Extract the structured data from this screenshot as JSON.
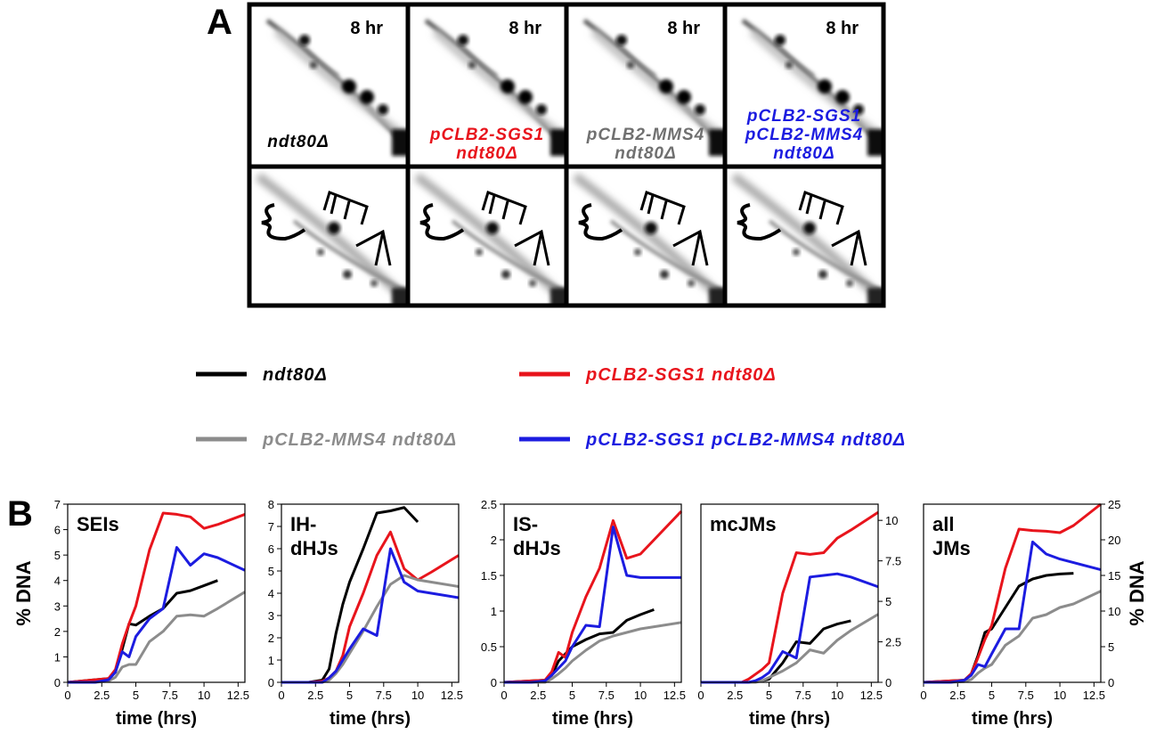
{
  "figure": {
    "panel_a_label": "A",
    "panel_b_label": "B",
    "gels": [
      {
        "time": "8 hr",
        "genotype": [
          "ndt80Δ"
        ],
        "color": "#000000"
      },
      {
        "time": "8 hr",
        "genotype": [
          "pCLB2-SGS1",
          "ndt80Δ"
        ],
        "color": "#e8141c"
      },
      {
        "time": "8 hr",
        "genotype": [
          "pCLB2-MMS4",
          "ndt80Δ"
        ],
        "color": "#707070"
      },
      {
        "time": "8 hr",
        "genotype": [
          "pCLB2-SGS1",
          "pCLB2-MMS4",
          "ndt80Δ"
        ],
        "color": "#1c1ce0"
      }
    ]
  },
  "chart_data": [
    {
      "type": "line",
      "title": [
        "SEIs"
      ],
      "y_label": "% DNA",
      "x_label": "time (hrs)",
      "x": [
        0,
        2,
        3,
        3.5,
        4,
        4.5,
        5,
        6,
        7,
        8,
        9,
        10,
        11,
        13
      ],
      "xlim": [
        0,
        13
      ],
      "xticks": [
        0,
        2.5,
        5,
        7.5,
        10,
        12.5
      ],
      "ylim": [
        0,
        7
      ],
      "yticks": [
        0,
        1,
        2,
        3,
        4,
        5,
        6,
        7
      ],
      "series": [
        {
          "name": "ndt80Δ",
          "color": "#000000",
          "values": [
            0,
            0.1,
            0.15,
            0.4,
            1.3,
            2.3,
            2.25,
            2.6,
            2.9,
            3.5,
            3.6,
            3.8,
            4.0,
            null
          ]
        },
        {
          "name": "pCLB2-SGS1 ndt80Δ",
          "color": "#e8141c",
          "values": [
            0,
            0.1,
            0.15,
            0.5,
            1.5,
            2.3,
            3.0,
            5.2,
            6.65,
            6.6,
            6.5,
            6.05,
            6.2,
            6.6
          ]
        },
        {
          "name": "pCLB2-MMS4 ndt80Δ",
          "color": "#8c8c8c",
          "values": [
            0,
            0,
            0.05,
            0.2,
            0.6,
            0.7,
            0.7,
            1.6,
            2.0,
            2.6,
            2.65,
            2.6,
            2.9,
            3.55
          ]
        },
        {
          "name": "pCLB2-SGS1 pCLB2-MMS4 ndt80Δ",
          "color": "#1c1ce0",
          "values": [
            0,
            0,
            0.1,
            0.4,
            1.2,
            1.0,
            1.8,
            2.5,
            2.9,
            5.3,
            4.6,
            5.05,
            4.9,
            4.4
          ]
        }
      ]
    },
    {
      "type": "line",
      "title": [
        "IH-",
        "dHJs"
      ],
      "x_label": "time (hrs)",
      "x": [
        0,
        2,
        3,
        3.5,
        4,
        4.5,
        5,
        6,
        7,
        8,
        9,
        10,
        11,
        13
      ],
      "xlim": [
        0,
        13
      ],
      "xticks": [
        0,
        2.5,
        5,
        7.5,
        10,
        12.5
      ],
      "ylim": [
        0,
        8
      ],
      "yticks": [
        0,
        1,
        2,
        3,
        4,
        5,
        6,
        7,
        8
      ],
      "series": [
        {
          "color": "#000000",
          "values": [
            0,
            0,
            0.1,
            0.6,
            2.2,
            3.5,
            4.5,
            6.0,
            7.6,
            7.7,
            7.85,
            7.2,
            null,
            null
          ]
        },
        {
          "color": "#e8141c",
          "values": [
            0,
            0,
            0.05,
            0.2,
            0.5,
            1.2,
            2.5,
            4.0,
            5.7,
            6.75,
            5.1,
            4.6,
            4.95,
            5.7
          ]
        },
        {
          "color": "#8c8c8c",
          "values": [
            0,
            0,
            0,
            0.1,
            0.4,
            0.8,
            1.3,
            2.3,
            3.4,
            4.4,
            4.8,
            4.6,
            4.5,
            4.3
          ]
        },
        {
          "color": "#1c1ce0",
          "values": [
            0,
            0,
            0,
            0.2,
            0.5,
            1.0,
            1.5,
            2.4,
            2.1,
            6.0,
            4.5,
            4.1,
            4.0,
            3.8
          ]
        }
      ]
    },
    {
      "type": "line",
      "title": [
        "IS-",
        "dHJs"
      ],
      "x_label": "time (hrs)",
      "x": [
        0,
        2,
        3,
        3.5,
        4,
        4.5,
        5,
        6,
        7,
        8,
        9,
        10,
        11,
        13
      ],
      "xlim": [
        0,
        13
      ],
      "xticks": [
        0,
        2.5,
        5,
        7.5,
        10,
        12.5
      ],
      "ylim": [
        0,
        2.5
      ],
      "yticks": [
        0,
        0.5,
        1,
        1.5,
        2,
        2.5
      ],
      "series": [
        {
          "color": "#000000",
          "values": [
            0,
            0.02,
            0.03,
            0.1,
            0.3,
            0.4,
            0.5,
            0.6,
            0.68,
            0.7,
            0.87,
            0.95,
            1.02,
            null
          ]
        },
        {
          "color": "#e8141c",
          "values": [
            0,
            0.02,
            0.03,
            0.15,
            0.42,
            0.35,
            0.7,
            1.2,
            1.6,
            2.27,
            1.74,
            1.8,
            2.0,
            2.4
          ]
        },
        {
          "color": "#8c8c8c",
          "values": [
            0,
            0,
            0,
            0.05,
            0.12,
            0.2,
            0.3,
            0.45,
            0.58,
            0.65,
            0.7,
            0.75,
            0.78,
            0.84
          ]
        },
        {
          "color": "#1c1ce0",
          "values": [
            0,
            0,
            0.02,
            0.1,
            0.2,
            0.3,
            0.5,
            0.8,
            0.78,
            2.18,
            1.5,
            1.47,
            1.47,
            1.47
          ]
        }
      ]
    },
    {
      "type": "line",
      "title": [
        "mcJMs"
      ],
      "x_label": "time (hrs)",
      "x": [
        0,
        2,
        3,
        3.5,
        4,
        4.5,
        5,
        6,
        7,
        8,
        9,
        10,
        11,
        13
      ],
      "xlim": [
        0,
        13
      ],
      "xticks": [
        0,
        2.5,
        5,
        7.5,
        10,
        12.5
      ],
      "y2lim": [
        0,
        11
      ],
      "y2ticks": [
        0,
        2.5,
        5,
        7.5,
        10
      ],
      "series": [
        {
          "color": "#000000",
          "axis": "y2",
          "values": [
            0,
            0,
            0,
            0,
            0.05,
            0.1,
            0.2,
            1.2,
            2.5,
            2.4,
            3.3,
            3.6,
            3.8,
            null
          ]
        },
        {
          "color": "#e8141c",
          "axis": "y2",
          "values": [
            0,
            0,
            0,
            0.2,
            0.5,
            0.8,
            1.2,
            5.5,
            8.0,
            7.9,
            8.0,
            8.9,
            9.4,
            10.5
          ]
        },
        {
          "color": "#8c8c8c",
          "axis": "y2",
          "values": [
            0,
            0,
            0,
            0,
            0,
            0.1,
            0.3,
            0.7,
            1.2,
            2.0,
            1.8,
            2.6,
            3.2,
            4.2
          ]
        },
        {
          "color": "#1c1ce0",
          "axis": "y2",
          "values": [
            0,
            0,
            0,
            0,
            0.1,
            0.3,
            0.6,
            1.9,
            1.5,
            6.5,
            6.6,
            6.7,
            6.5,
            5.9
          ]
        }
      ]
    },
    {
      "type": "line",
      "title": [
        "all",
        "JMs"
      ],
      "y_label": "% DNA",
      "x_label": "time (hrs)",
      "x": [
        0,
        2,
        3,
        3.5,
        4,
        4.5,
        5,
        6,
        7,
        8,
        9,
        10,
        11,
        13
      ],
      "xlim": [
        0,
        13
      ],
      "xticks": [
        0,
        2.5,
        5,
        7.5,
        10,
        12.5
      ],
      "y2lim": [
        0,
        25
      ],
      "y2ticks": [
        0,
        5,
        10,
        15,
        20,
        25
      ],
      "series": [
        {
          "color": "#000000",
          "axis": "y2",
          "values": [
            0,
            0.2,
            0.3,
            1.2,
            3.8,
            7.0,
            7.5,
            10.5,
            13.5,
            14.5,
            15.0,
            15.2,
            15.3,
            null
          ]
        },
        {
          "color": "#e8141c",
          "axis": "y2",
          "values": [
            0,
            0.2,
            0.3,
            1.2,
            3.5,
            6.0,
            8.0,
            16.0,
            21.5,
            21.3,
            21.2,
            21.0,
            22.0,
            25.0
          ]
        },
        {
          "color": "#8c8c8c",
          "axis": "y2",
          "values": [
            0,
            0,
            0.1,
            0.4,
            1.3,
            2.0,
            2.5,
            5.2,
            6.5,
            9.0,
            9.5,
            10.5,
            11.0,
            12.8
          ]
        },
        {
          "color": "#1c1ce0",
          "axis": "y2",
          "values": [
            0,
            0,
            0.3,
            1.0,
            2.5,
            2.2,
            4.0,
            7.5,
            7.5,
            19.7,
            18.0,
            17.3,
            16.8,
            15.8
          ]
        }
      ]
    }
  ]
}
